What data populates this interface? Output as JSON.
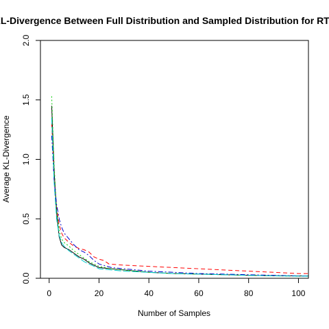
{
  "chart_data": {
    "type": "line",
    "title": "KL-Divergence Between Full Distribution and Sampled Distribution for RTT",
    "xlabel": "Number of Samples",
    "ylabel": "Average KL-Divergence",
    "xlim": [
      -3.5,
      104
    ],
    "ylim": [
      0,
      2.0
    ],
    "x_ticks": [
      0,
      20,
      40,
      60,
      80,
      100
    ],
    "y_ticks": [
      0.0,
      0.5,
      1.0,
      1.5,
      2.0
    ],
    "y_tick_labels": [
      "0.0",
      "0.5",
      "1.0",
      "1.5",
      "2.0"
    ],
    "grid": false,
    "legend": "none",
    "series": [
      {
        "color": "#000000",
        "dash": "solid",
        "x": [
          1,
          2,
          3,
          4,
          5,
          6,
          8,
          10,
          12,
          14,
          16,
          18,
          20,
          25,
          30,
          40,
          50,
          60,
          70,
          80,
          90,
          100,
          104
        ],
        "y": [
          1.45,
          0.9,
          0.55,
          0.35,
          0.28,
          0.26,
          0.24,
          0.21,
          0.18,
          0.16,
          0.13,
          0.11,
          0.09,
          0.08,
          0.07,
          0.05,
          0.04,
          0.035,
          0.03,
          0.025,
          0.022,
          0.02,
          0.02
        ]
      },
      {
        "color": "#ff0000",
        "dash": "6,4",
        "x": [
          1,
          2,
          3,
          4,
          5,
          6,
          8,
          10,
          12,
          14,
          16,
          18,
          20,
          22,
          24,
          30,
          40,
          50,
          60,
          70,
          80,
          90,
          100,
          104
        ],
        "y": [
          1.3,
          0.85,
          0.6,
          0.45,
          0.38,
          0.34,
          0.3,
          0.27,
          0.25,
          0.24,
          0.22,
          0.18,
          0.16,
          0.15,
          0.12,
          0.11,
          0.1,
          0.09,
          0.08,
          0.07,
          0.06,
          0.05,
          0.04,
          0.04
        ]
      },
      {
        "color": "#00cc00",
        "dash": "2,3",
        "x": [
          1,
          2,
          3,
          4,
          5,
          6,
          8,
          10,
          12,
          14,
          16,
          20,
          25,
          30,
          40,
          50,
          60,
          70,
          80,
          90,
          100,
          104
        ],
        "y": [
          1.53,
          0.95,
          0.58,
          0.4,
          0.33,
          0.3,
          0.27,
          0.23,
          0.2,
          0.17,
          0.14,
          0.1,
          0.08,
          0.07,
          0.05,
          0.04,
          0.035,
          0.03,
          0.025,
          0.02,
          0.018,
          0.018
        ]
      },
      {
        "color": "#0000cc",
        "dash": "7,3,2,3",
        "x": [
          1,
          2,
          3,
          4,
          5,
          6,
          8,
          10,
          12,
          14,
          16,
          18,
          20,
          25,
          30,
          40,
          50,
          60,
          70,
          80,
          90,
          100,
          104
        ],
        "y": [
          1.2,
          0.82,
          0.62,
          0.5,
          0.43,
          0.38,
          0.33,
          0.28,
          0.24,
          0.22,
          0.19,
          0.15,
          0.12,
          0.09,
          0.08,
          0.06,
          0.05,
          0.04,
          0.035,
          0.03,
          0.025,
          0.02,
          0.02
        ]
      },
      {
        "color": "#00cccc",
        "dash": "10,3",
        "x": [
          1,
          2,
          3,
          4,
          5,
          6,
          8,
          10,
          12,
          14,
          16,
          18,
          20,
          25,
          30,
          40,
          50,
          60,
          70,
          80,
          90,
          100,
          104
        ],
        "y": [
          1.35,
          0.8,
          0.5,
          0.36,
          0.3,
          0.27,
          0.23,
          0.2,
          0.17,
          0.14,
          0.12,
          0.1,
          0.08,
          0.07,
          0.06,
          0.05,
          0.04,
          0.035,
          0.03,
          0.025,
          0.02,
          0.018,
          0.018
        ]
      }
    ]
  }
}
